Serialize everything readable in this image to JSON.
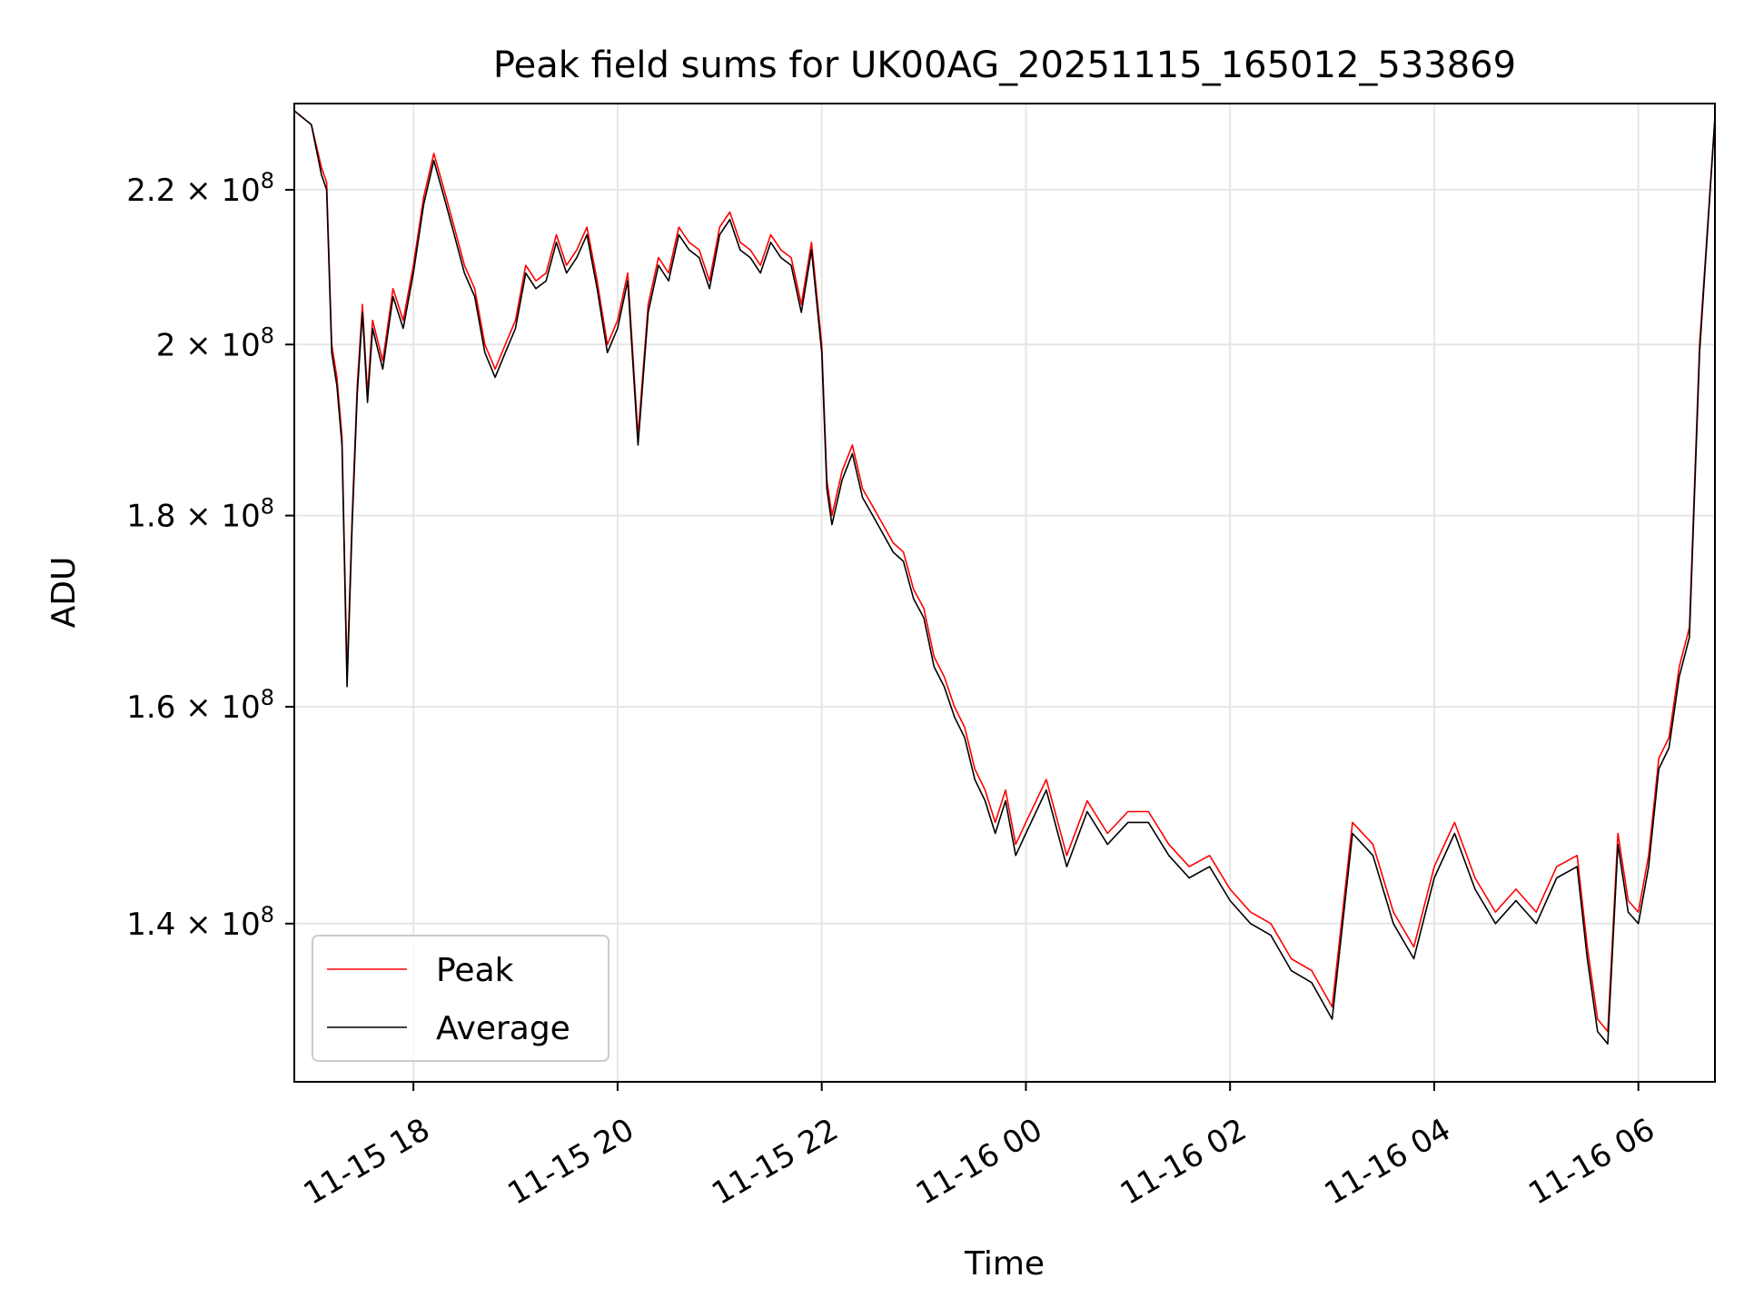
{
  "chart_data": {
    "type": "line",
    "title": "Peak field sums for UK00AG_20251115_165012_533869",
    "xlabel": "Time",
    "ylabel": "ADU",
    "x_unit": "hours after 2025-11-15 00:00",
    "xlim": [
      16.833,
      30.75
    ],
    "y_scale": "log",
    "ylim": [
      127000000,
      232000000
    ],
    "grid": true,
    "x_ticks": [
      {
        "value": 18,
        "label": "11-15 18"
      },
      {
        "value": 20,
        "label": "11-15 20"
      },
      {
        "value": 22,
        "label": "11-15 22"
      },
      {
        "value": 24,
        "label": "11-16 00"
      },
      {
        "value": 26,
        "label": "11-16 02"
      },
      {
        "value": 28,
        "label": "11-16 04"
      },
      {
        "value": 30,
        "label": "11-16 06"
      }
    ],
    "y_ticks": [
      {
        "value": 140000000,
        "mantissa": "1.4",
        "exp": "8"
      },
      {
        "value": 160000000,
        "mantissa": "1.6",
        "exp": "8"
      },
      {
        "value": 180000000,
        "mantissa": "1.8",
        "exp": "8"
      },
      {
        "value": 200000000,
        "mantissa": "2",
        "exp": "8"
      },
      {
        "value": 220000000,
        "mantissa": "2.2",
        "exp": "8"
      }
    ],
    "legend": {
      "position": "lower-left",
      "entries": [
        "Peak",
        "Average"
      ]
    },
    "series": [
      {
        "name": "Peak",
        "color": "#ff0000",
        "x": [
          16.83,
          17.0,
          17.1,
          17.15,
          17.2,
          17.25,
          17.3,
          17.35,
          17.4,
          17.45,
          17.5,
          17.55,
          17.6,
          17.7,
          17.8,
          17.9,
          18.0,
          18.1,
          18.2,
          18.3,
          18.4,
          18.5,
          18.6,
          18.7,
          18.8,
          18.9,
          19.0,
          19.1,
          19.2,
          19.3,
          19.4,
          19.5,
          19.6,
          19.7,
          19.8,
          19.9,
          20.0,
          20.1,
          20.2,
          20.3,
          20.4,
          20.5,
          20.6,
          20.7,
          20.8,
          20.9,
          21.0,
          21.1,
          21.2,
          21.3,
          21.4,
          21.5,
          21.6,
          21.7,
          21.8,
          21.9,
          22.0,
          22.05,
          22.1,
          22.2,
          22.3,
          22.4,
          22.5,
          22.6,
          22.7,
          22.8,
          22.9,
          23.0,
          23.1,
          23.2,
          23.3,
          23.4,
          23.5,
          23.6,
          23.7,
          23.8,
          23.9,
          24.0,
          24.2,
          24.4,
          24.6,
          24.8,
          25.0,
          25.2,
          25.4,
          25.6,
          25.8,
          26.0,
          26.2,
          26.4,
          26.6,
          26.8,
          27.0,
          27.2,
          27.4,
          27.6,
          27.8,
          28.0,
          28.2,
          28.4,
          28.6,
          28.8,
          29.0,
          29.2,
          29.4,
          29.5,
          29.6,
          29.7,
          29.8,
          29.9,
          30.0,
          30.1,
          30.2,
          30.3,
          30.4,
          30.5,
          30.6,
          30.75
        ],
        "values": [
          231000000,
          229000000,
          223000000,
          221000000,
          200000000,
          196000000,
          189000000,
          163000000,
          180000000,
          195000000,
          205000000,
          194000000,
          203000000,
          198000000,
          207000000,
          203000000,
          210000000,
          219000000,
          225000000,
          220000000,
          215000000,
          210000000,
          207000000,
          200000000,
          197000000,
          200000000,
          203000000,
          210000000,
          208000000,
          209000000,
          214000000,
          210000000,
          212000000,
          215000000,
          208000000,
          200000000,
          203000000,
          209000000,
          189000000,
          205000000,
          211000000,
          209000000,
          215000000,
          213000000,
          212000000,
          208000000,
          215000000,
          217000000,
          213000000,
          212000000,
          210000000,
          214000000,
          212000000,
          211000000,
          205000000,
          213000000,
          200000000,
          184000000,
          180000000,
          185000000,
          188000000,
          183000000,
          181000000,
          179000000,
          177000000,
          176000000,
          172000000,
          170000000,
          165000000,
          163000000,
          160000000,
          158000000,
          154000000,
          152000000,
          149000000,
          152000000,
          147000000,
          149000000,
          153000000,
          146000000,
          151000000,
          148000000,
          150000000,
          150000000,
          147000000,
          145000000,
          146000000,
          143000000,
          141000000,
          140000000,
          137000000,
          136000000,
          133000000,
          149000000,
          147000000,
          141000000,
          138000000,
          145000000,
          149000000,
          144000000,
          141000000,
          143000000,
          141000000,
          145000000,
          146000000,
          138000000,
          132000000,
          131000000,
          148000000,
          142000000,
          141000000,
          146000000,
          155000000,
          157000000,
          164000000,
          168000000,
          200000000,
          230000000
        ]
      },
      {
        "name": "Average",
        "color": "#000000",
        "x": [
          16.83,
          17.0,
          17.1,
          17.15,
          17.2,
          17.25,
          17.3,
          17.35,
          17.4,
          17.45,
          17.5,
          17.55,
          17.6,
          17.7,
          17.8,
          17.9,
          18.0,
          18.1,
          18.2,
          18.3,
          18.4,
          18.5,
          18.6,
          18.7,
          18.8,
          18.9,
          19.0,
          19.1,
          19.2,
          19.3,
          19.4,
          19.5,
          19.6,
          19.7,
          19.8,
          19.9,
          20.0,
          20.1,
          20.2,
          20.3,
          20.4,
          20.5,
          20.6,
          20.7,
          20.8,
          20.9,
          21.0,
          21.1,
          21.2,
          21.3,
          21.4,
          21.5,
          21.6,
          21.7,
          21.8,
          21.9,
          22.0,
          22.05,
          22.1,
          22.2,
          22.3,
          22.4,
          22.5,
          22.6,
          22.7,
          22.8,
          22.9,
          23.0,
          23.1,
          23.2,
          23.3,
          23.4,
          23.5,
          23.6,
          23.7,
          23.8,
          23.9,
          24.0,
          24.2,
          24.4,
          24.6,
          24.8,
          25.0,
          25.2,
          25.4,
          25.6,
          25.8,
          26.0,
          26.2,
          26.4,
          26.6,
          26.8,
          27.0,
          27.2,
          27.4,
          27.6,
          27.8,
          28.0,
          28.2,
          28.4,
          28.6,
          28.8,
          29.0,
          29.2,
          29.4,
          29.5,
          29.6,
          29.7,
          29.8,
          29.9,
          30.0,
          30.1,
          30.2,
          30.3,
          30.4,
          30.5,
          30.6,
          30.75
        ],
        "values": [
          231000000,
          229000000,
          222000000,
          220000000,
          199000000,
          195000000,
          188000000,
          162000000,
          179000000,
          194000000,
          204000000,
          193000000,
          202000000,
          197000000,
          206000000,
          202000000,
          209000000,
          218000000,
          224000000,
          219000000,
          214000000,
          209000000,
          206000000,
          199000000,
          196000000,
          199000000,
          202000000,
          209000000,
          207000000,
          208000000,
          213000000,
          209000000,
          211000000,
          214000000,
          207000000,
          199000000,
          202000000,
          208000000,
          188000000,
          204000000,
          210000000,
          208000000,
          214000000,
          212000000,
          211000000,
          207000000,
          214000000,
          216000000,
          212000000,
          211000000,
          209000000,
          213000000,
          211000000,
          210000000,
          204000000,
          212000000,
          199000000,
          183000000,
          179000000,
          184000000,
          187000000,
          182000000,
          180000000,
          178000000,
          176000000,
          175000000,
          171000000,
          169000000,
          164000000,
          162000000,
          159000000,
          157000000,
          153000000,
          151000000,
          148000000,
          151000000,
          146000000,
          148000000,
          152000000,
          145000000,
          150000000,
          147000000,
          149000000,
          149000000,
          146000000,
          144000000,
          145000000,
          142000000,
          140000000,
          139000000,
          136000000,
          135000000,
          132000000,
          148000000,
          146000000,
          140000000,
          137000000,
          144000000,
          148000000,
          143000000,
          140000000,
          142000000,
          140000000,
          144000000,
          145000000,
          137000000,
          131000000,
          130000000,
          147000000,
          141000000,
          140000000,
          145000000,
          154000000,
          156000000,
          163000000,
          167000000,
          199000000,
          230000000
        ]
      }
    ]
  }
}
